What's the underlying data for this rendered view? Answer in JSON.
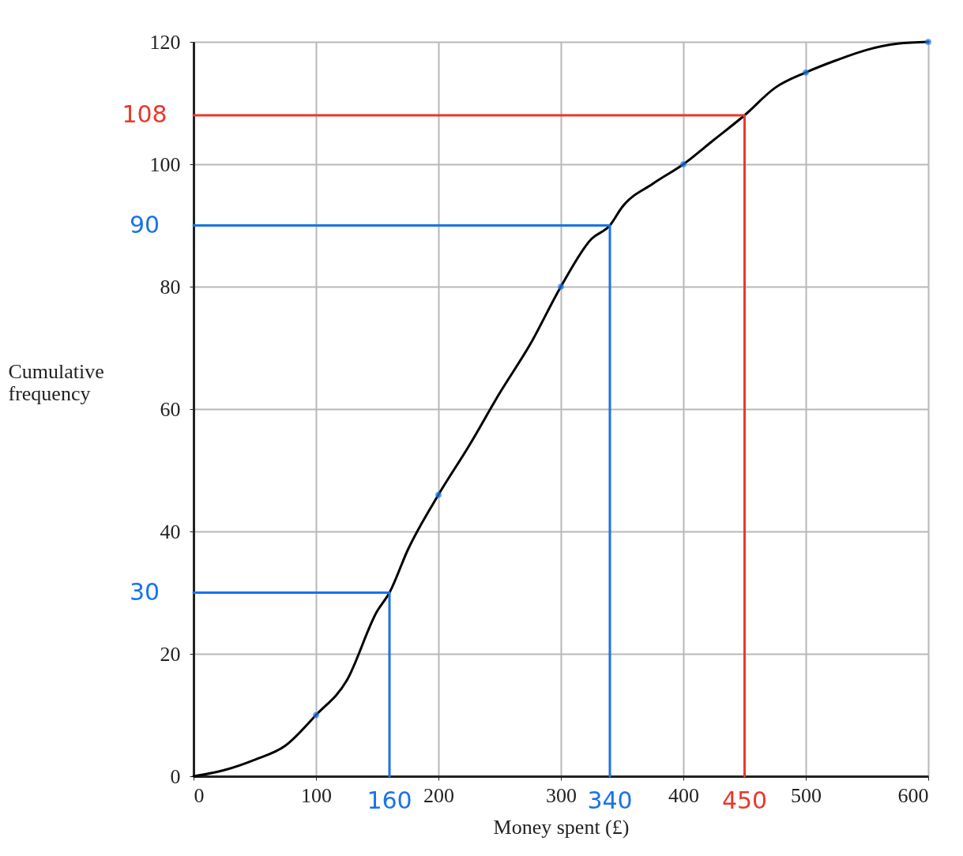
{
  "chart_data": {
    "type": "line",
    "xlabel": "Money spent (£)",
    "ylabel": "Cumulative frequency",
    "xlim": [
      0,
      600
    ],
    "ylim": [
      0,
      120
    ],
    "xticks": [
      0,
      100,
      200,
      300,
      400,
      500,
      600
    ],
    "yticks": [
      0,
      20,
      40,
      60,
      80,
      100,
      120
    ],
    "grid": true,
    "series": [
      {
        "color": "#000000",
        "x": [
          0,
          25,
          50,
          75,
          100,
          125,
          150,
          160,
          175,
          200,
          225,
          250,
          275,
          300,
          325,
          340,
          350,
          375,
          400,
          425,
          450,
          475,
          500,
          525,
          550,
          575,
          600
        ],
        "values": [
          0,
          1,
          2.7,
          5,
          10,
          15.6,
          27,
          30,
          37,
          46,
          54,
          62.6,
          70.6,
          80,
          87.8,
          90,
          93,
          96.8,
          100,
          104,
          108,
          112.5,
          115,
          117,
          118.7,
          119.7,
          120
        ]
      },
      {
        "type": "scatter",
        "marker": "circle",
        "color": "#1a73e8",
        "x": [
          100,
          200,
          300,
          400,
          500,
          600
        ],
        "values": [
          10,
          46,
          80,
          100,
          115,
          120
        ]
      },
      {
        "type": "line",
        "color": "#1a73e8",
        "x": [
          0,
          160,
          160
        ],
        "values": [
          30,
          30,
          0
        ]
      },
      {
        "type": "line",
        "color": "#1a73e8",
        "x": [
          0,
          340,
          340
        ],
        "values": [
          90,
          90,
          0
        ]
      },
      {
        "type": "line",
        "color": "#e8392a",
        "x": [
          0,
          450,
          450
        ],
        "values": [
          108,
          108,
          0
        ]
      }
    ],
    "annotations": [
      {
        "text": "30",
        "x": 0,
        "y": 30
      },
      {
        "text": "90",
        "x": 0,
        "y": 90
      },
      {
        "text": "108",
        "x": 0,
        "y": 108
      },
      {
        "text": "160",
        "x": 160,
        "y": 0
      },
      {
        "text": "340",
        "x": 340,
        "y": 0
      },
      {
        "text": "450",
        "x": 450,
        "y": 0
      }
    ]
  }
}
